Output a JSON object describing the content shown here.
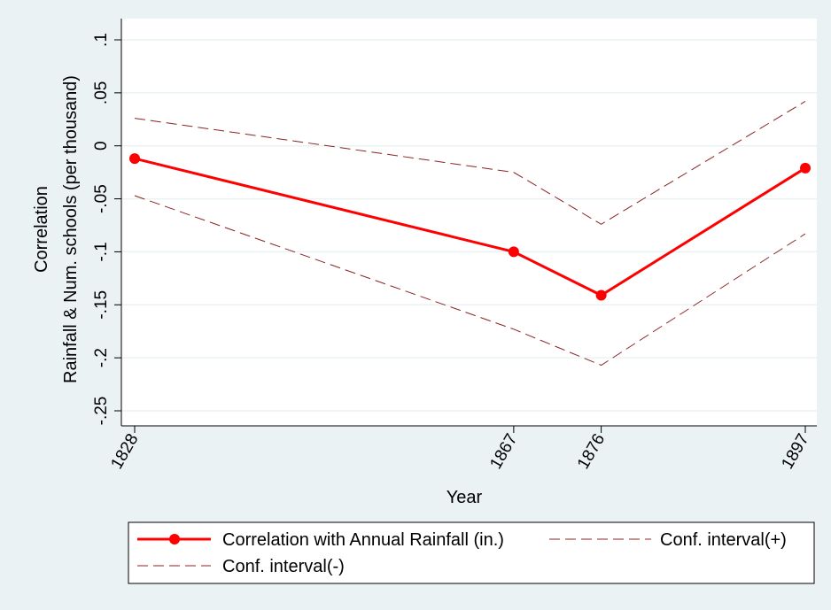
{
  "colors": {
    "outer_background": "#eaf2f3",
    "plot_background": "#ffffff",
    "grid": "#eaf2f3",
    "main_series": "#ff0000",
    "ci_series": "#8b2323"
  },
  "chart_data": {
    "type": "line",
    "xlabel": "Year",
    "ylabel_lines": [
      "Correlation",
      "Rainfall & Num. schools (per thousand)"
    ],
    "x": [
      1828,
      1867,
      1876,
      1897
    ],
    "x_tick_labels": [
      "1828",
      "1867",
      "1876",
      "1897"
    ],
    "xlim": [
      1828,
      1897
    ],
    "ylim": [
      -0.25,
      0.1
    ],
    "y_ticks": [
      -0.25,
      -0.2,
      -0.15,
      -0.1,
      -0.05,
      0,
      0.05,
      0.1
    ],
    "y_tick_labels": [
      "-.25",
      "-.2",
      "-.15",
      "-.1",
      "-.05",
      "0",
      ".05",
      ".1"
    ],
    "grid": true,
    "legend_position": "bottom",
    "series": [
      {
        "name": "Correlation with Annual Rainfall (in.)",
        "values": [
          -0.012,
          -0.1,
          -0.141,
          -0.021
        ],
        "style": "solid-markers",
        "color": "#ff0000"
      },
      {
        "name": "Conf. interval(+)",
        "values": [
          0.026,
          -0.025,
          -0.074,
          0.042
        ],
        "style": "dashed",
        "color": "#8b2323"
      },
      {
        "name": "Conf. interval(-)",
        "values": [
          -0.047,
          -0.173,
          -0.207,
          -0.083
        ],
        "style": "dashed",
        "color": "#8b2323"
      }
    ]
  }
}
